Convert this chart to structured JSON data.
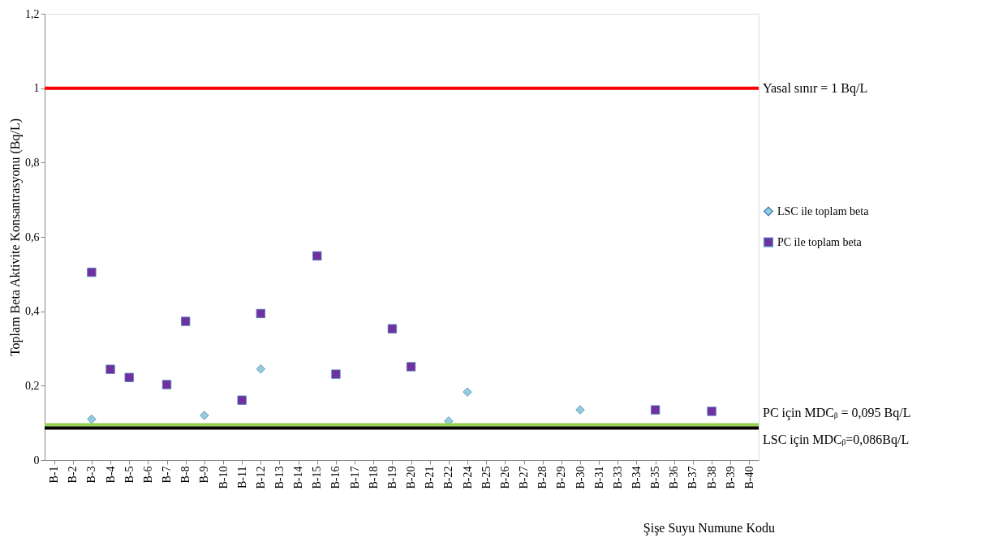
{
  "chart_data": {
    "type": "scatter",
    "xlabel": "Şişe Suyu Numune Kodu",
    "ylabel": "Toplam Beta Aktivite Konsantrasyonu (Bq/L)",
    "categories": [
      "B-1",
      "B-2",
      "B-3",
      "B-4",
      "B-5",
      "B-6",
      "B-7",
      "B-8",
      "B-9",
      "B-10",
      "B-11",
      "B-12",
      "B-13",
      "B-14",
      "B-15",
      "B-16",
      "B-17",
      "B-18",
      "B-19",
      "B-20",
      "B-21",
      "B-22",
      "B-24",
      "B-25",
      "B-26",
      "B-27",
      "B-28",
      "B-29",
      "B-30",
      "B-31",
      "B-33",
      "B-34",
      "B-35",
      "B-36",
      "B-37",
      "B-38",
      "B-39",
      "B-40"
    ],
    "series": [
      {
        "name": "LSC ile toplam beta",
        "color": "#93cddd",
        "marker": "diamond",
        "values": [
          null,
          null,
          0.11,
          null,
          null,
          null,
          null,
          null,
          0.12,
          null,
          null,
          0.245,
          null,
          null,
          null,
          null,
          null,
          null,
          null,
          null,
          null,
          0.105,
          0.183,
          null,
          null,
          null,
          null,
          null,
          0.135,
          null,
          null,
          null,
          null,
          null,
          null,
          null,
          null,
          null
        ]
      },
      {
        "name": "PC ile toplam beta",
        "color": "#7030a0",
        "marker": "square",
        "values": [
          null,
          null,
          0.505,
          0.244,
          0.222,
          null,
          0.203,
          0.373,
          null,
          null,
          0.161,
          0.394,
          null,
          null,
          0.549,
          0.231,
          null,
          null,
          0.353,
          0.251,
          null,
          null,
          null,
          null,
          null,
          null,
          null,
          null,
          null,
          null,
          null,
          null,
          0.135,
          null,
          null,
          0.131,
          null,
          null
        ]
      }
    ],
    "ylim": [
      0,
      1.2
    ],
    "yticks": [
      0,
      {
        "value": 0.2,
        "label": "0,2"
      },
      {
        "value": 0.4,
        "label": "0,4"
      },
      {
        "value": 0.6,
        "label": "0,6"
      },
      {
        "value": 0.8,
        "label": "0,8"
      },
      1,
      {
        "value": 1.2,
        "label": "1,2"
      }
    ],
    "ref_lines": [
      {
        "axis": "y",
        "value": 1,
        "label": "Yasal sınır = 1 Bq/L",
        "color": "#ff0000"
      },
      {
        "axis": "y",
        "value": 0.095,
        "label": "PC için MDCᵦ = 0,095 Bq/L",
        "color": "#92d050"
      },
      {
        "axis": "y",
        "value": 0.086,
        "label": "LSC için MDCᵦ=0,086Bq/L",
        "color": "#000000"
      }
    ],
    "grid": false,
    "legend": "right"
  }
}
